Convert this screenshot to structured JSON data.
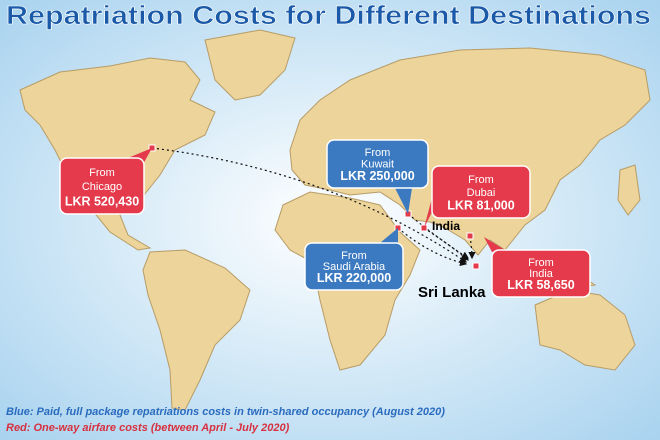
{
  "title": "Repatriation Costs for Different Destinations",
  "callouts": [
    {
      "from": "From",
      "place": "Chicago",
      "cost": "LKR 520,430",
      "kind": "red"
    },
    {
      "from": "From",
      "place": "Kuwait",
      "cost": "LKR 250,000",
      "kind": "blue"
    },
    {
      "from": "From",
      "place": "Dubai",
      "cost": "LKR 81,000",
      "kind": "red"
    },
    {
      "from": "From",
      "place": "Saudi Arabia",
      "cost": "LKR 220,000",
      "kind": "blue"
    },
    {
      "from": "From",
      "place": "India",
      "cost": "LKR 58,650",
      "kind": "red"
    }
  ],
  "labels": {
    "india": "India",
    "sri_lanka": "Sri Lanka"
  },
  "legend": {
    "blue": "Blue: Paid, full package repatriations costs in twin-shared occupancy (August 2020)",
    "red": "Red: One-way airfare costs (between April - July 2020)"
  }
}
